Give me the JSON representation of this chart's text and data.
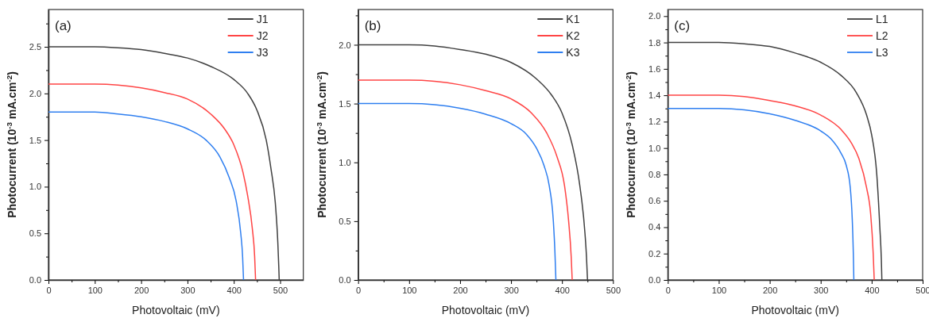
{
  "chart_data": [
    {
      "type": "line",
      "xlabel": "Photovoltaic (mV)",
      "ylabel": "Photocurrent (10$^{-3}$ mA.cm$^{-2}$)",
      "annotations": [
        "(a)"
      ],
      "legend": "top right",
      "line_style": "solid",
      "marker": "none",
      "xlim": [
        0,
        550
      ],
      "xticks": [
        0,
        {
          "value": 50,
          "label": null
        },
        100,
        {
          "value": 150,
          "label": null
        },
        200,
        {
          "value": 250,
          "label": null
        },
        300,
        {
          "value": 350,
          "label": null
        },
        400,
        {
          "value": 450,
          "label": null
        },
        500
      ],
      "ylim": [
        0,
        2.9
      ],
      "yticks": [
        "0.0",
        {
          "value": 0.25,
          "label": null
        },
        {
          "value": 0.5,
          "label": "0.5"
        },
        {
          "value": 0.75,
          "label": null
        },
        {
          "value": 1,
          "label": "1.0"
        },
        {
          "value": 1.25,
          "label": null
        },
        {
          "value": 1.5,
          "label": "1.5"
        },
        {
          "value": 1.75,
          "label": null
        },
        {
          "value": 2,
          "label": "2.0"
        },
        {
          "value": 2.25,
          "label": null
        },
        {
          "value": 2.5,
          "label": "2.5"
        },
        {
          "value": 2.75,
          "label": null
        }
      ],
      "series": [
        {
          "name": "J1",
          "color": "#404040",
          "x": [
            0,
            100,
            150,
            200,
            250,
            300,
            350,
            400,
            430,
            450,
            470,
            480,
            490,
            495,
            497,
            498
          ],
          "values": [
            2.5,
            2.5,
            2.49,
            2.47,
            2.43,
            2.38,
            2.29,
            2.15,
            2.0,
            1.82,
            1.5,
            1.2,
            0.8,
            0.4,
            0.15,
            0
          ]
        },
        {
          "name": "J2",
          "color": "#ff4545",
          "x": [
            0,
            100,
            150,
            200,
            250,
            300,
            350,
            380,
            400,
            420,
            430,
            440,
            445,
            447
          ],
          "values": [
            2.1,
            2.1,
            2.09,
            2.06,
            2.01,
            1.94,
            1.78,
            1.62,
            1.45,
            1.15,
            0.9,
            0.55,
            0.25,
            0
          ]
        },
        {
          "name": "J3",
          "color": "#2f7ff0",
          "x": [
            0,
            100,
            150,
            200,
            250,
            300,
            340,
            370,
            390,
            405,
            415,
            419,
            421
          ],
          "values": [
            1.8,
            1.8,
            1.78,
            1.75,
            1.7,
            1.62,
            1.5,
            1.32,
            1.1,
            0.85,
            0.5,
            0.25,
            0
          ]
        }
      ]
    },
    {
      "type": "line",
      "xlabel": "Photovoltaic (mV)",
      "ylabel": "Photocurrent (10$^{-3}$ mA.cm$^{-2}$)",
      "annotations": [
        "(b)"
      ],
      "legend": "top right",
      "line_style": "solid",
      "marker": "none",
      "xlim": [
        0,
        500
      ],
      "xticks": [
        0,
        {
          "value": 50,
          "label": null
        },
        100,
        {
          "value": 150,
          "label": null
        },
        200,
        {
          "value": 250,
          "label": null
        },
        300,
        {
          "value": 350,
          "label": null
        },
        400,
        {
          "value": 450,
          "label": null
        },
        500
      ],
      "ylim": [
        0,
        2.3
      ],
      "yticks": [
        {
          "value": 0,
          "label": "0.0"
        },
        {
          "value": 0.25,
          "label": null
        },
        {
          "value": 0.5,
          "label": "0.5"
        },
        {
          "value": 0.75,
          "label": null
        },
        {
          "value": 1,
          "label": "1.0"
        },
        {
          "value": 1.25,
          "label": null
        },
        {
          "value": 1.5,
          "label": "1.5"
        },
        {
          "value": 1.75,
          "label": null
        },
        {
          "value": 2,
          "label": "2.0"
        },
        {
          "value": 2.25,
          "label": null
        }
      ],
      "series": [
        {
          "name": "K1",
          "color": "#404040",
          "x": [
            0,
            100,
            150,
            200,
            250,
            300,
            350,
            380,
            400,
            420,
            435,
            445,
            448,
            450
          ],
          "values": [
            2.0,
            2.0,
            1.99,
            1.96,
            1.92,
            1.85,
            1.71,
            1.57,
            1.42,
            1.15,
            0.8,
            0.4,
            0.2,
            0
          ]
        },
        {
          "name": "K2",
          "color": "#ff4545",
          "x": [
            0,
            100,
            150,
            200,
            250,
            300,
            340,
            370,
            390,
            405,
            413,
            418,
            420
          ],
          "values": [
            1.7,
            1.7,
            1.69,
            1.66,
            1.61,
            1.54,
            1.42,
            1.25,
            1.05,
            0.8,
            0.5,
            0.2,
            0
          ]
        },
        {
          "name": "K3",
          "color": "#2f7ff0",
          "x": [
            0,
            100,
            150,
            200,
            250,
            300,
            330,
            350,
            365,
            375,
            383,
            386,
            388
          ],
          "values": [
            1.5,
            1.5,
            1.49,
            1.46,
            1.41,
            1.33,
            1.24,
            1.12,
            0.97,
            0.8,
            0.5,
            0.25,
            0
          ]
        }
      ]
    },
    {
      "type": "line",
      "xlabel": "Photovoltaic (mV)",
      "ylabel": "Photocurrent (10$^{-3}$ mA.cm$^{-2}$)",
      "annotations": [
        "(c)"
      ],
      "legend": "top right",
      "line_style": "solid",
      "marker": "none",
      "xlim": [
        0,
        500
      ],
      "xticks": [
        0,
        {
          "value": 50,
          "label": null
        },
        100,
        {
          "value": 150,
          "label": null
        },
        200,
        {
          "value": 250,
          "label": null
        },
        300,
        {
          "value": 350,
          "label": null
        },
        400,
        {
          "value": 450,
          "label": null
        },
        500
      ],
      "ylim": [
        0,
        2.05
      ],
      "yticks": [
        {
          "value": 0,
          "label": "0.0"
        },
        {
          "value": 0.1,
          "label": null
        },
        {
          "value": 0.2,
          "label": "0.2"
        },
        {
          "value": 0.3,
          "label": null
        },
        {
          "value": 0.4,
          "label": "0.4"
        },
        {
          "value": 0.5,
          "label": null
        },
        {
          "value": 0.6,
          "label": "0.6"
        },
        {
          "value": 0.7,
          "label": null
        },
        {
          "value": 0.8,
          "label": "0.8"
        },
        {
          "value": 0.9,
          "label": null
        },
        {
          "value": 1,
          "label": "1.0"
        },
        {
          "value": 1.1,
          "label": null
        },
        {
          "value": 1.2,
          "label": "1.2"
        },
        {
          "value": 1.3,
          "label": null
        },
        {
          "value": 1.4,
          "label": "1.4"
        },
        {
          "value": 1.5,
          "label": null
        },
        {
          "value": 1.6,
          "label": "1.6"
        },
        {
          "value": 1.7,
          "label": null
        },
        {
          "value": 1.8,
          "label": "1.8"
        },
        {
          "value": 1.9,
          "label": null
        },
        {
          "value": 2,
          "label": "2.0"
        }
      ],
      "series": [
        {
          "name": "L1",
          "color": "#404040",
          "x": [
            0,
            100,
            150,
            200,
            250,
            300,
            340,
            370,
            390,
            400,
            410,
            416,
            419,
            420
          ],
          "values": [
            1.8,
            1.8,
            1.79,
            1.77,
            1.72,
            1.65,
            1.55,
            1.42,
            1.25,
            1.1,
            0.8,
            0.4,
            0.15,
            0
          ]
        },
        {
          "name": "L2",
          "color": "#ff4545",
          "x": [
            0,
            100,
            150,
            200,
            250,
            300,
            340,
            360,
            375,
            390,
            398,
            403,
            405
          ],
          "values": [
            1.4,
            1.4,
            1.39,
            1.36,
            1.32,
            1.25,
            1.14,
            1.04,
            0.92,
            0.7,
            0.5,
            0.2,
            0
          ]
        },
        {
          "name": "L3",
          "color": "#2f7ff0",
          "x": [
            0,
            100,
            150,
            200,
            250,
            300,
            320,
            340,
            350,
            358,
            362,
            364,
            365
          ],
          "values": [
            1.3,
            1.3,
            1.29,
            1.26,
            1.21,
            1.13,
            1.07,
            0.96,
            0.87,
            0.7,
            0.45,
            0.2,
            0
          ]
        }
      ]
    }
  ]
}
